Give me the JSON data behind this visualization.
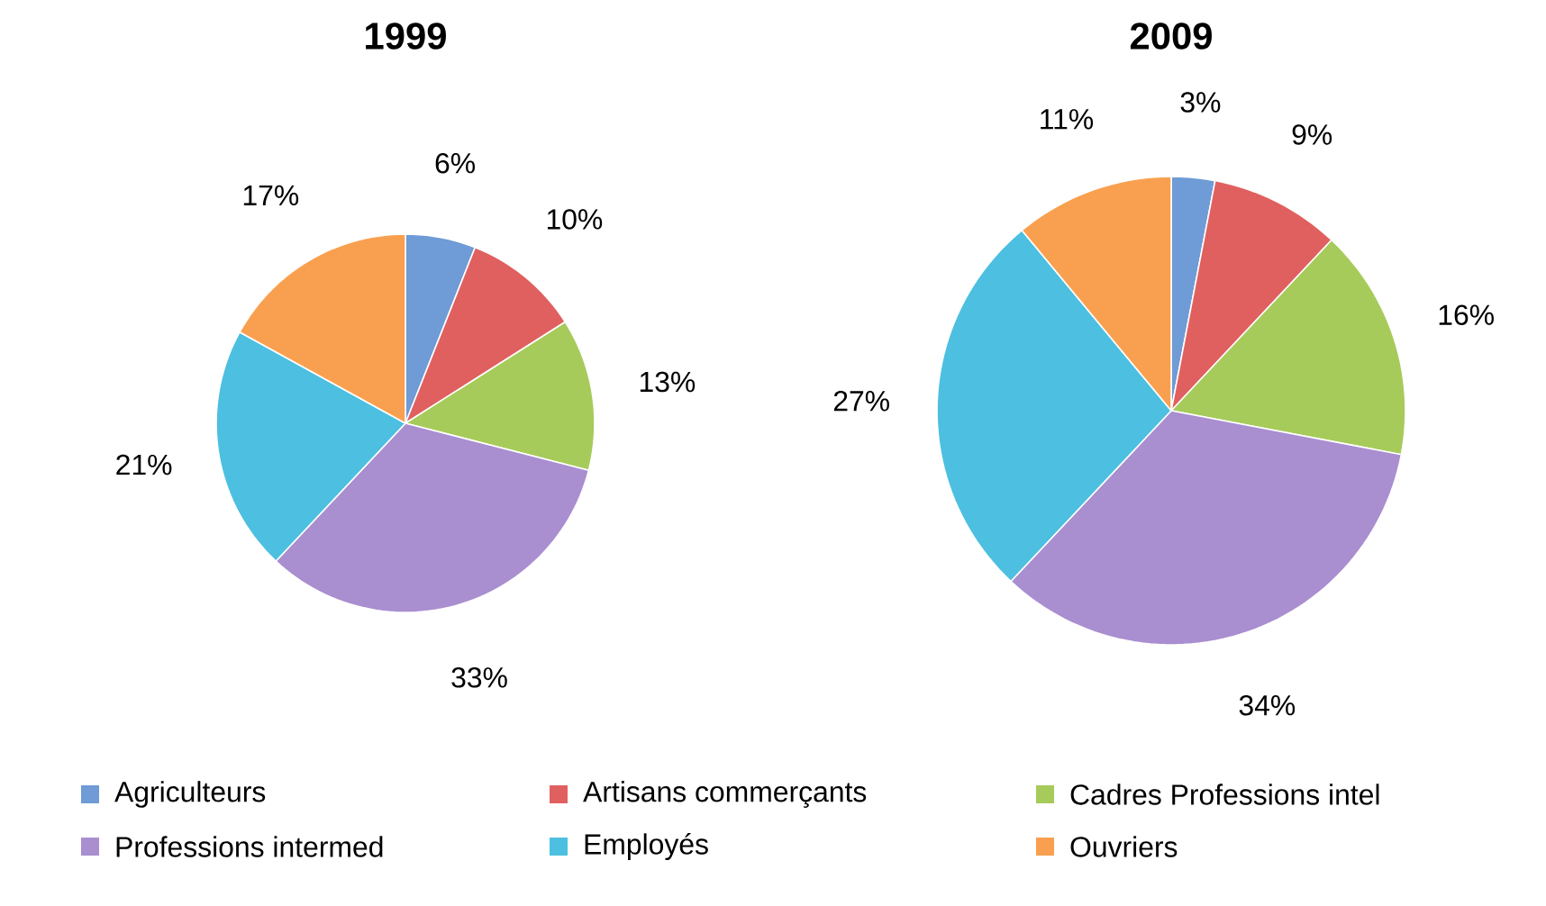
{
  "chart_data": [
    {
      "type": "pie",
      "title": "1999",
      "categories": [
        "Agriculteurs",
        "Artisans commerçants",
        "Cadres Professions intel",
        "Professions intermed",
        "Employés",
        "Ouvriers"
      ],
      "values": [
        6,
        10,
        13,
        33,
        21,
        17
      ],
      "value_labels": [
        "6%",
        "10%",
        "13%",
        "33%",
        "21%",
        "17%"
      ],
      "colors": [
        "#6f9bd6",
        "#e0605f",
        "#a6cb5a",
        "#a98ed0",
        "#4dbfe0",
        "#f9a050"
      ],
      "legend": "bottom"
    },
    {
      "type": "pie",
      "title": "2009",
      "categories": [
        null,
        null,
        null,
        null,
        null,
        null
      ],
      "values": [
        3,
        9,
        16,
        34,
        27,
        11
      ],
      "value_labels": [
        "3%",
        "9%",
        "16%",
        "34%",
        "27%",
        "11%"
      ],
      "colors": [
        "#6f9bd6",
        "#e0605f",
        "#a6cb5a",
        "#a98ed0",
        "#4dbfe0",
        "#f9a050"
      ]
    }
  ]
}
